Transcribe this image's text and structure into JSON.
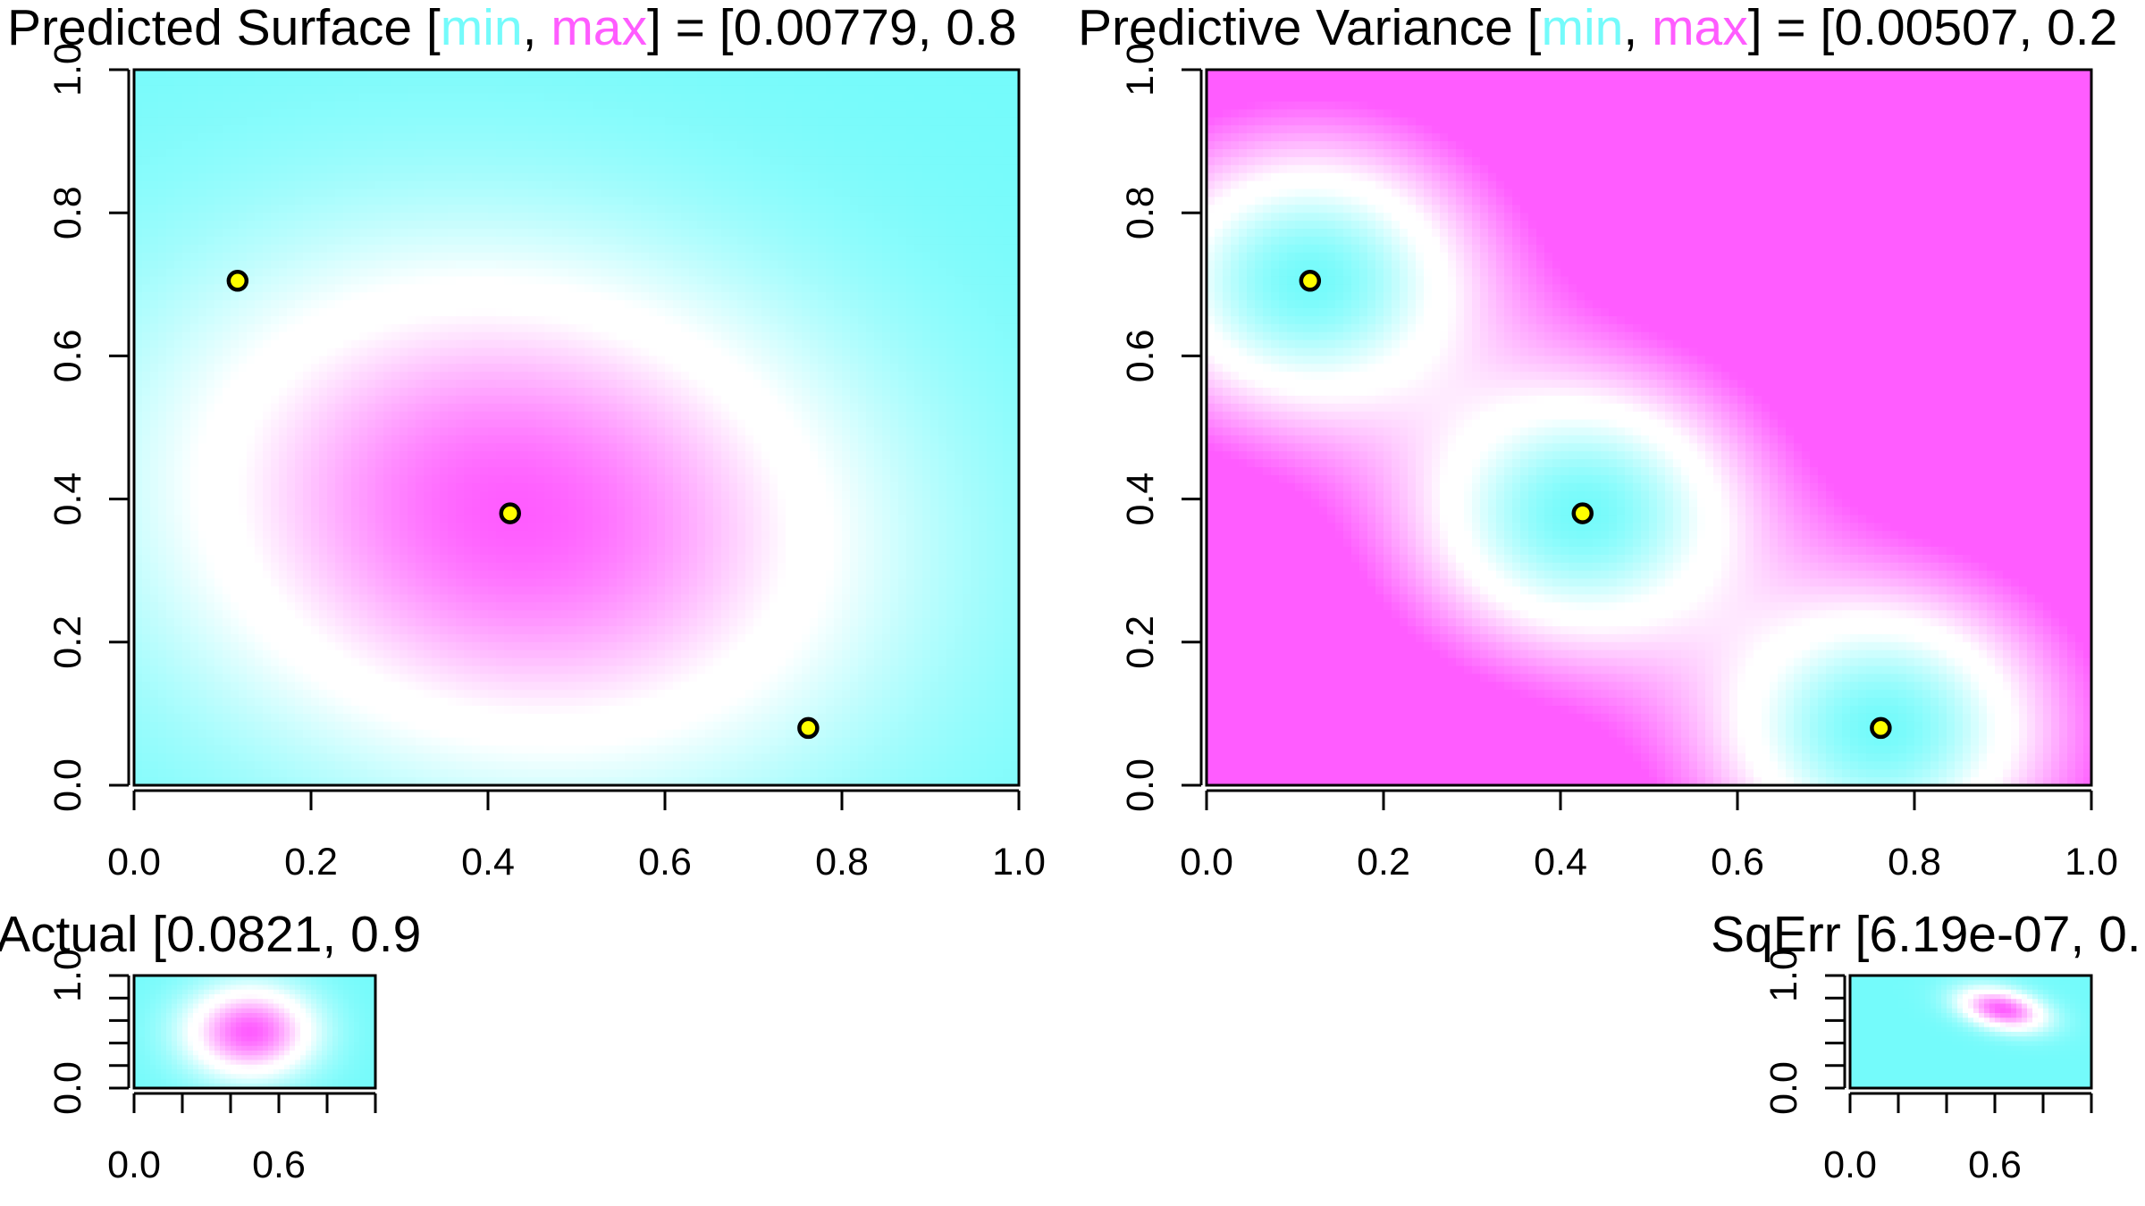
{
  "colors": {
    "min": "#74fbfb",
    "max": "#ff5cff",
    "mid": "#ffffff",
    "point_fill": "#ffff00",
    "point_stroke": "#000000"
  },
  "chart_data": [
    {
      "id": "predicted_surface",
      "type": "heatmap",
      "title_parts": [
        {
          "text": "Predicted Surface [",
          "color": "text"
        },
        {
          "text": "min",
          "color": "min"
        },
        {
          "text": ", ",
          "color": "text"
        },
        {
          "text": "max",
          "color": "max"
        },
        {
          "text": "] = [0.00779, 0.8",
          "color": "text"
        }
      ],
      "xlim": [
        0,
        1
      ],
      "ylim": [
        0,
        1
      ],
      "xticks": [
        "0.0",
        "0.2",
        "0.4",
        "0.6",
        "0.8",
        "1.0"
      ],
      "yticks": [
        "0.0",
        "0.2",
        "0.4",
        "0.6",
        "0.8",
        "1.0"
      ],
      "range": [
        0.00779,
        0.8
      ],
      "peak": {
        "x": 0.43,
        "y": 0.38
      },
      "points": [
        {
          "x": 0.117,
          "y": 0.705
        },
        {
          "x": 0.425,
          "y": 0.38
        },
        {
          "x": 0.762,
          "y": 0.08
        }
      ]
    },
    {
      "id": "predictive_variance",
      "type": "heatmap",
      "title_parts": [
        {
          "text": "Predictive Variance [",
          "color": "text"
        },
        {
          "text": "min",
          "color": "min"
        },
        {
          "text": ", ",
          "color": "text"
        },
        {
          "text": "max",
          "color": "max"
        },
        {
          "text": "] = [0.00507, 0.2",
          "color": "text"
        }
      ],
      "xlim": [
        0,
        1
      ],
      "ylim": [
        0,
        1
      ],
      "xticks": [
        "0.0",
        "0.2",
        "0.4",
        "0.6",
        "0.8",
        "1.0"
      ],
      "yticks": [
        "0.0",
        "0.2",
        "0.4",
        "0.6",
        "0.8",
        "1.0"
      ],
      "range": [
        0.00507,
        0.2
      ],
      "points": [
        {
          "x": 0.117,
          "y": 0.705
        },
        {
          "x": 0.425,
          "y": 0.38
        },
        {
          "x": 0.762,
          "y": 0.08
        }
      ]
    },
    {
      "id": "actual",
      "type": "heatmap",
      "title_parts": [
        {
          "text": "Actual [0.0821, 0.9",
          "color": "text"
        }
      ],
      "xlim": [
        0,
        1
      ],
      "ylim": [
        0,
        1
      ],
      "xticks": [
        "0.0",
        "0.6"
      ],
      "yticks": [
        "0.0",
        "1.0"
      ],
      "range": [
        0.0821,
        0.9
      ]
    },
    {
      "id": "sqerr",
      "type": "heatmap",
      "title_parts": [
        {
          "text": "SqErr [6.19e-07, 0.",
          "color": "text"
        }
      ],
      "xlim": [
        0,
        1
      ],
      "ylim": [
        0,
        1
      ],
      "xticks": [
        "0.0",
        "0.6"
      ],
      "yticks": [
        "0.0",
        "1.0"
      ],
      "range": [
        6.19e-07,
        null
      ]
    }
  ]
}
